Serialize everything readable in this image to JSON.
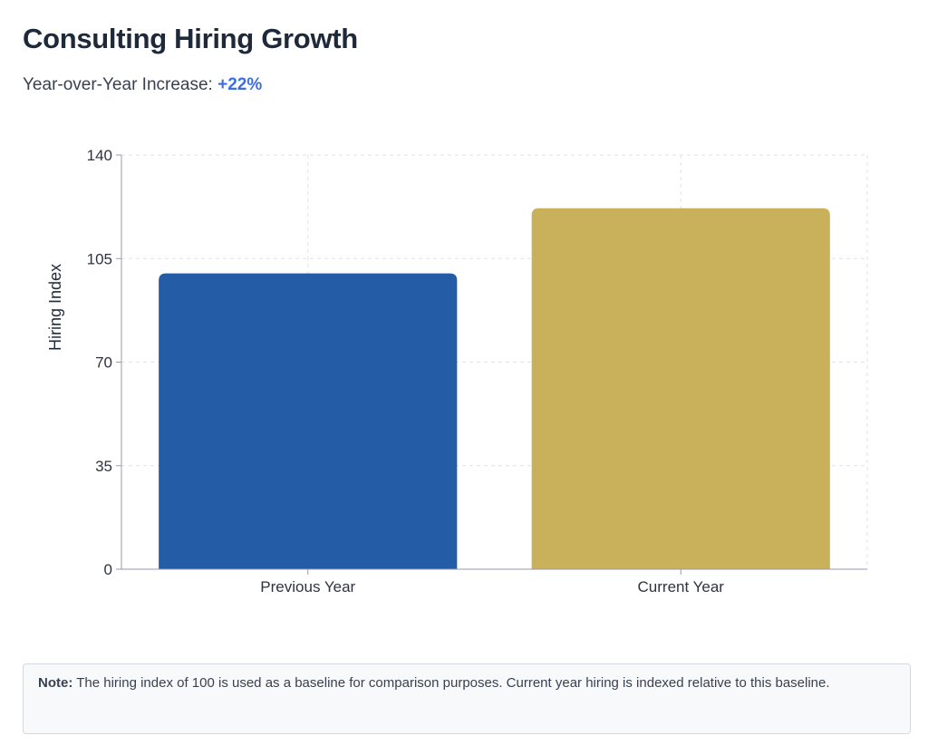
{
  "header": {
    "title": "Consulting Hiring Growth",
    "subtitle_prefix": "Year-over-Year Increase:",
    "subtitle_value": "+22%"
  },
  "chart_data": {
    "type": "bar",
    "categories": [
      "Previous Year",
      "Current Year"
    ],
    "values": [
      100,
      122
    ],
    "colors": [
      "#255ca6",
      "#c9b15c"
    ],
    "title": "",
    "xlabel": "",
    "ylabel": "Hiring Index",
    "ylim": [
      0,
      140
    ],
    "yticks": [
      0,
      35,
      70,
      105,
      140
    ],
    "grid": true,
    "legend": "none"
  },
  "note": {
    "label": "Note:",
    "text": "The hiring index of 100 is used as a baseline for comparison purposes. Current year hiring is indexed relative to this baseline."
  },
  "colors": {
    "accent": "#3b6fe0",
    "axis": "#9999b3",
    "grid": "#e2e2e2"
  }
}
